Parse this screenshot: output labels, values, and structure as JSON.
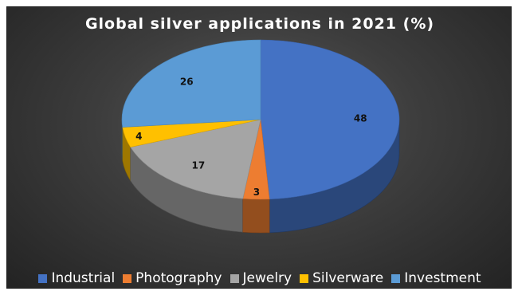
{
  "chart_data": {
    "type": "pie",
    "title": "Global silver applications in 2021 (%)",
    "categories": [
      "Industrial",
      "Photography",
      "Jewelry",
      "Silverware",
      "Investment"
    ],
    "values": [
      48,
      3,
      17,
      4,
      26
    ],
    "colors": [
      "#4472c4",
      "#ed7d31",
      "#a5a5a5",
      "#ffc000",
      "#5b9bd5"
    ],
    "data_labels": [
      "48",
      "3",
      "17",
      "4",
      "26"
    ],
    "legend_position": "bottom",
    "style": "3d"
  }
}
